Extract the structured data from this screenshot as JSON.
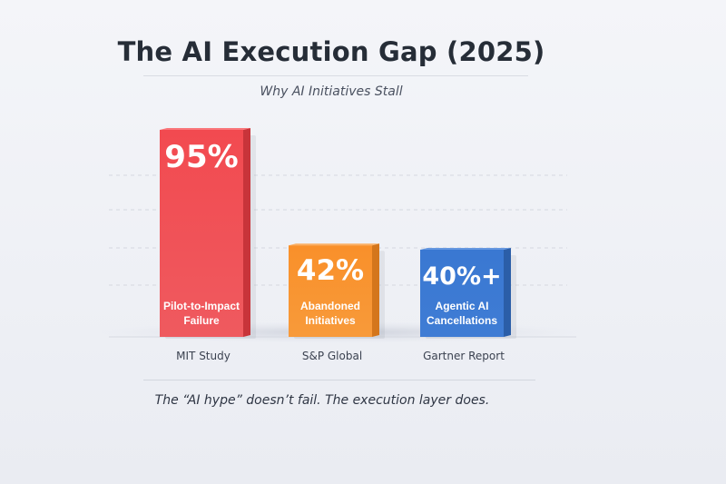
{
  "header": {
    "title": "The AI Execution Gap (2025)",
    "subtitle": "Why AI Initiatives Stall"
  },
  "chart_data": {
    "type": "bar",
    "title": "The AI Execution Gap (2025)",
    "subtitle": "Why AI Initiatives Stall",
    "categories": [
      "MIT Study",
      "S&P Global",
      "Gartner Report"
    ],
    "bar_labels": [
      [
        "Pilot-to-Impact",
        "Failure"
      ],
      [
        "Abandoned",
        "Initiatives"
      ],
      [
        "Agentic AI",
        "Cancellations"
      ]
    ],
    "values": [
      95,
      42,
      40
    ],
    "value_labels": [
      "95%",
      "42%",
      "40%+"
    ],
    "colors": [
      "#f04a4f",
      "#f7902a",
      "#3a76cf"
    ],
    "ylim": [
      0,
      100
    ],
    "grid": true,
    "xlabel": "",
    "ylabel": ""
  },
  "footer": {
    "note": "The “AI hype” doesn’t fail. The execution layer does."
  }
}
